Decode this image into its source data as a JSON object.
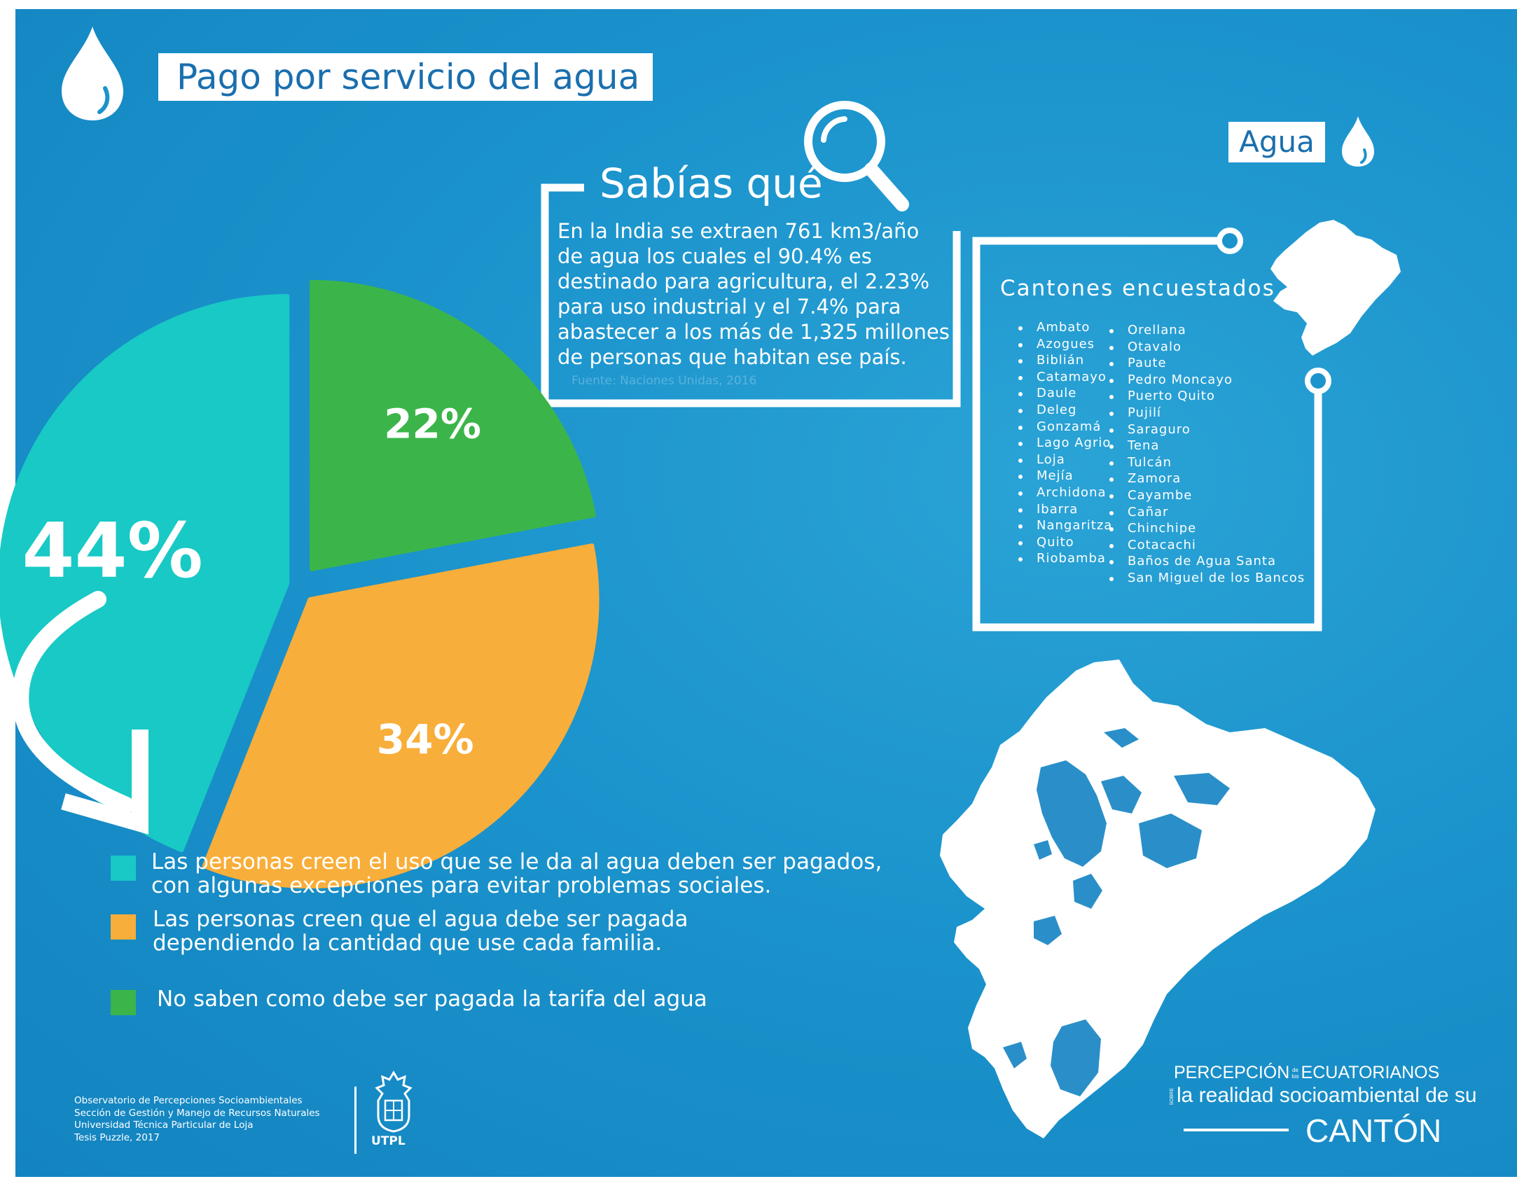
{
  "header": {
    "title": "Pago por servicio del agua",
    "tag": "Agua"
  },
  "colors": {
    "cyan": "#18c9c5",
    "orange": "#f8ae3a",
    "green": "#3bb54a",
    "bg": "#1b93cc"
  },
  "chart_data": {
    "type": "pie",
    "slices": [
      {
        "label": "44%",
        "value": 44,
        "color": "#18c9c5"
      },
      {
        "label": "34%",
        "value": 34,
        "color": "#f8ae3a"
      },
      {
        "label": "22%",
        "value": 22,
        "color": "#3bb54a"
      }
    ],
    "legend": [
      {
        "color": "#18c9c5",
        "line1": "Las personas creen el uso que se le da al agua deben ser pagados,",
        "line2": "con algunas excepciones para evitar problemas sociales."
      },
      {
        "color": "#f8ae3a",
        "line1": "Las personas creen que el agua debe ser pagada",
        "line2": "dependiendo la cantidad que use cada familia."
      },
      {
        "color": "#3bb54a",
        "line1": "No saben como debe ser pagada la tarifa del agua",
        "line2": ""
      }
    ]
  },
  "sabias": {
    "title": "Sabías qué",
    "lines": [
      "En la India se extraen 761 km3/año",
      "de agua los cuales el 90.4% es",
      "destinado para agricultura, el 2.23%",
      "para uso industrial y el 7.4% para",
      "abastecer a los más de 1,325 millones",
      "de personas que habitan ese país."
    ],
    "source": "Fuente: Naciones Unidas, 2016"
  },
  "cantones": {
    "title": "Cantones encuestados",
    "col1": [
      "Ambato",
      "Azogues",
      "Biblián",
      "Catamayo",
      "Daule",
      "Deleg",
      "Gonzamá",
      "Lago Agrio",
      "Loja",
      "Mejía",
      "Archidona",
      "Ibarra",
      "Nangaritza",
      "Quito",
      "Riobamba"
    ],
    "col2": [
      "Orellana",
      "Otavalo",
      "Paute",
      "Pedro Moncayo",
      "Puerto Quito",
      "Pujilí",
      "Saraguro",
      "Tena",
      "Tulcán",
      "Zamora",
      "Cayambe",
      "Cañar",
      "Chinchipe",
      "Cotacachi",
      "Baños de Agua Santa",
      "San Miguel de los Bancos"
    ]
  },
  "credits": {
    "lines": [
      "Observatorio de Percepciones Socioambientales",
      "Sección de Gestión y Manejo de Recursos Naturales",
      "Universidad Técnica Particular de Loja",
      "Tesis Puzzle, 2017"
    ],
    "logo": "UTPL"
  },
  "brand": {
    "percepcion": "PERCEPCIÓN",
    "de": "de",
    "los": "los",
    "ecuatorianos": "ECUATORIANOS",
    "sobre": "SOBRE",
    "line2": "la realidad socioambiental de su",
    "canton": "CANTÓN"
  }
}
